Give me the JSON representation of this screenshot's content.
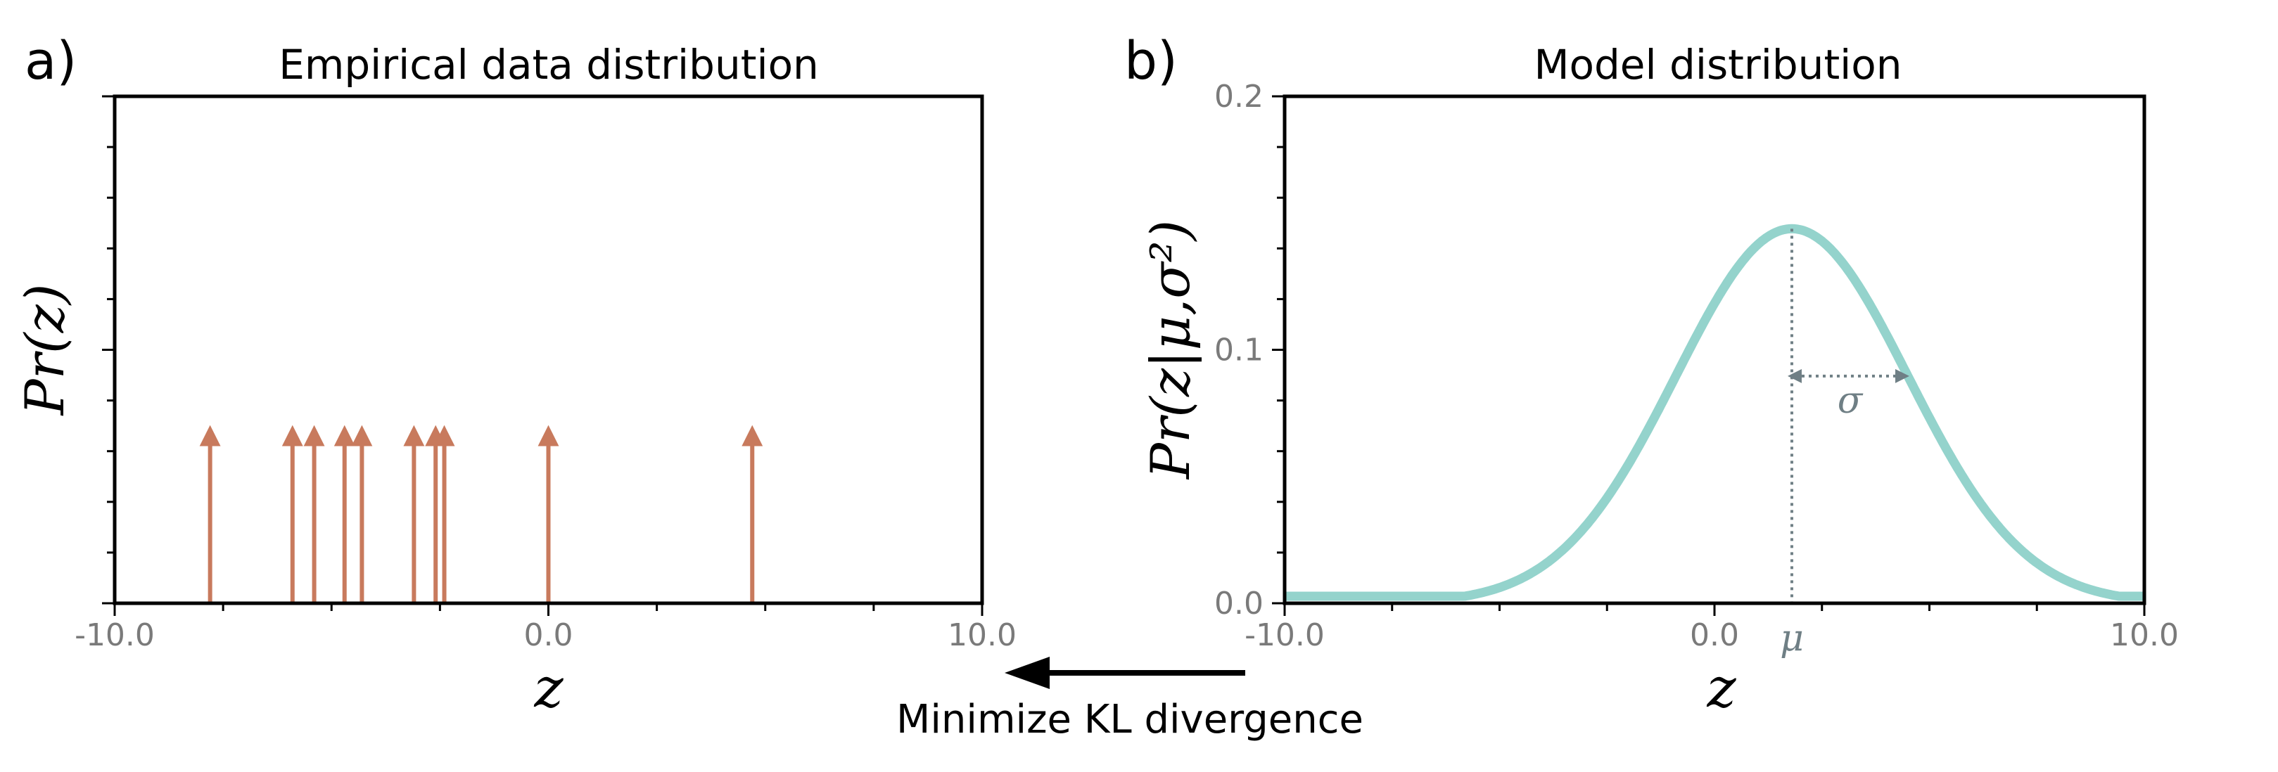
{
  "chart_data": [
    {
      "type": "stem",
      "panel_letter": "a)",
      "title": "Empirical data distribution",
      "xlabel": "z",
      "ylabel": "Pr(z)",
      "xlim": [
        -10,
        10
      ],
      "xticks": [
        -10,
        0,
        10
      ],
      "xtick_labels": [
        "-10.0",
        "0.0",
        "10.0"
      ],
      "ylim": [
        0,
        1
      ],
      "stem_height": 0.35,
      "arrow_color": "#c87a5d",
      "points": [
        -7.8,
        -5.9,
        -5.4,
        -4.7,
        -4.3,
        -3.1,
        -2.6,
        -2.4,
        0.0,
        4.7
      ]
    },
    {
      "type": "line",
      "panel_letter": "b)",
      "title": "Model distribution",
      "xlabel": "z",
      "ylabel": "Pr(z|μ,σ²)",
      "xlim": [
        -10,
        10
      ],
      "xticks": [
        -10,
        0,
        10
      ],
      "xtick_labels": [
        "-10.0",
        "0.0",
        "10.0"
      ],
      "ylim": [
        0,
        0.2
      ],
      "yticks": [
        0,
        0.1,
        0.2
      ],
      "ytick_labels": [
        "0.0",
        "0.1",
        "0.2"
      ],
      "line_color": "#94d3cc",
      "mu": 1.8,
      "sigma": 2.7,
      "mu_label": "μ",
      "sigma_label": "σ"
    }
  ],
  "caption": "Minimize KL divergence",
  "colors": {
    "axis": "#000000",
    "tick_text": "#7a7a7a",
    "annotation": "#6f7f85"
  }
}
